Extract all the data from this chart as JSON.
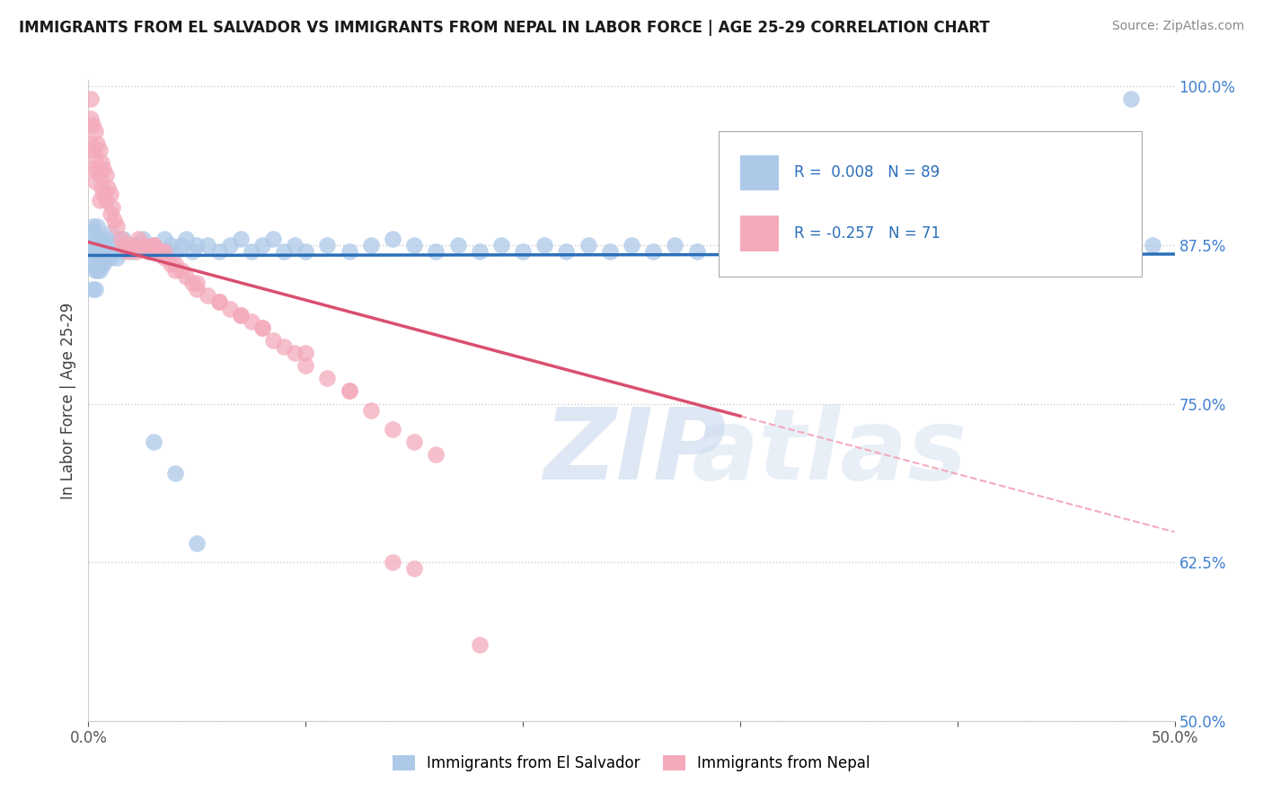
{
  "title": "IMMIGRANTS FROM EL SALVADOR VS IMMIGRANTS FROM NEPAL IN LABOR FORCE | AGE 25-29 CORRELATION CHART",
  "source": "Source: ZipAtlas.com",
  "ylabel": "In Labor Force | Age 25-29",
  "xlim": [
    0.0,
    0.5
  ],
  "ylim": [
    0.5,
    1.005
  ],
  "xticks": [
    0.0,
    0.1,
    0.2,
    0.3,
    0.4,
    0.5
  ],
  "xticklabels": [
    "0.0%",
    "",
    "",
    "",
    "",
    "50.0%"
  ],
  "yticks": [
    0.5,
    0.625,
    0.75,
    0.875,
    1.0
  ],
  "yticklabels": [
    "50.0%",
    "62.5%",
    "75.0%",
    "87.5%",
    "100.0%"
  ],
  "blue_color": "#adc9e8",
  "pink_color": "#f4aabb",
  "blue_line_color": "#2b6fba",
  "pink_line_color": "#d94f6e",
  "pink_dash_color": "#f4aabb",
  "legend_blue_label": "Immigrants from El Salvador",
  "legend_pink_label": "Immigrants from Nepal",
  "watermark_zip": "ZIP",
  "watermark_atlas": "atlas",
  "blue_N": 89,
  "pink_N": 71,
  "blue_R": 0.008,
  "pink_R": -0.257,
  "blue_scatter_x": [
    0.001,
    0.001,
    0.001,
    0.002,
    0.002,
    0.002,
    0.002,
    0.003,
    0.003,
    0.003,
    0.003,
    0.004,
    0.004,
    0.004,
    0.005,
    0.005,
    0.005,
    0.006,
    0.006,
    0.007,
    0.007,
    0.008,
    0.008,
    0.009,
    0.01,
    0.01,
    0.011,
    0.012,
    0.013,
    0.015,
    0.016,
    0.018,
    0.02,
    0.022,
    0.025,
    0.028,
    0.03,
    0.033,
    0.035,
    0.038,
    0.04,
    0.043,
    0.045,
    0.048,
    0.05,
    0.055,
    0.06,
    0.065,
    0.07,
    0.075,
    0.08,
    0.085,
    0.09,
    0.095,
    0.1,
    0.11,
    0.12,
    0.13,
    0.14,
    0.15,
    0.16,
    0.17,
    0.18,
    0.19,
    0.2,
    0.21,
    0.22,
    0.23,
    0.24,
    0.25,
    0.26,
    0.27,
    0.28,
    0.3,
    0.32,
    0.34,
    0.36,
    0.38,
    0.4,
    0.42,
    0.44,
    0.45,
    0.46,
    0.48,
    0.49,
    0.03,
    0.04,
    0.05,
    0.48
  ],
  "blue_scatter_y": [
    0.885,
    0.875,
    0.86,
    0.89,
    0.87,
    0.86,
    0.84,
    0.885,
    0.87,
    0.855,
    0.84,
    0.89,
    0.875,
    0.855,
    0.88,
    0.87,
    0.855,
    0.875,
    0.86,
    0.875,
    0.86,
    0.88,
    0.865,
    0.87,
    0.885,
    0.865,
    0.87,
    0.875,
    0.865,
    0.87,
    0.88,
    0.875,
    0.87,
    0.875,
    0.88,
    0.87,
    0.875,
    0.87,
    0.88,
    0.875,
    0.87,
    0.875,
    0.88,
    0.87,
    0.875,
    0.875,
    0.87,
    0.875,
    0.88,
    0.87,
    0.875,
    0.88,
    0.87,
    0.875,
    0.87,
    0.875,
    0.87,
    0.875,
    0.88,
    0.875,
    0.87,
    0.875,
    0.87,
    0.875,
    0.87,
    0.875,
    0.87,
    0.875,
    0.87,
    0.875,
    0.87,
    0.875,
    0.87,
    0.875,
    0.87,
    0.875,
    0.87,
    0.88,
    0.875,
    0.87,
    0.875,
    0.87,
    0.875,
    0.87,
    0.875,
    0.72,
    0.695,
    0.64,
    0.99
  ],
  "pink_scatter_x": [
    0.001,
    0.001,
    0.001,
    0.002,
    0.002,
    0.002,
    0.003,
    0.003,
    0.003,
    0.004,
    0.004,
    0.005,
    0.005,
    0.005,
    0.006,
    0.006,
    0.007,
    0.007,
    0.008,
    0.008,
    0.009,
    0.01,
    0.01,
    0.011,
    0.012,
    0.013,
    0.015,
    0.016,
    0.018,
    0.02,
    0.022,
    0.025,
    0.028,
    0.03,
    0.033,
    0.035,
    0.038,
    0.04,
    0.043,
    0.045,
    0.048,
    0.05,
    0.055,
    0.06,
    0.065,
    0.07,
    0.075,
    0.08,
    0.085,
    0.09,
    0.095,
    0.1,
    0.11,
    0.12,
    0.13,
    0.14,
    0.15,
    0.16,
    0.023,
    0.03,
    0.035,
    0.04,
    0.05,
    0.06,
    0.07,
    0.08,
    0.1,
    0.12,
    0.14,
    0.15,
    0.18
  ],
  "pink_scatter_y": [
    0.99,
    0.975,
    0.955,
    0.97,
    0.95,
    0.935,
    0.965,
    0.945,
    0.925,
    0.955,
    0.935,
    0.95,
    0.93,
    0.91,
    0.94,
    0.92,
    0.935,
    0.915,
    0.93,
    0.91,
    0.92,
    0.915,
    0.9,
    0.905,
    0.895,
    0.89,
    0.88,
    0.875,
    0.87,
    0.875,
    0.87,
    0.875,
    0.87,
    0.875,
    0.87,
    0.865,
    0.86,
    0.86,
    0.855,
    0.85,
    0.845,
    0.84,
    0.835,
    0.83,
    0.825,
    0.82,
    0.815,
    0.81,
    0.8,
    0.795,
    0.79,
    0.78,
    0.77,
    0.76,
    0.745,
    0.73,
    0.72,
    0.71,
    0.88,
    0.875,
    0.87,
    0.855,
    0.845,
    0.83,
    0.82,
    0.81,
    0.79,
    0.76,
    0.625,
    0.62,
    0.56
  ]
}
